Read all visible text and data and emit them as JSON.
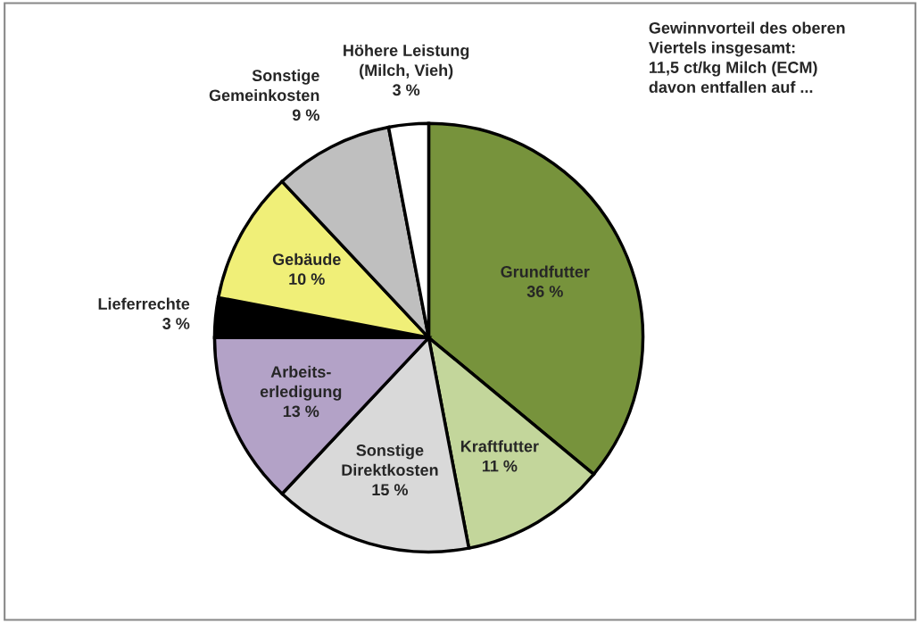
{
  "chart_data": {
    "type": "pie",
    "categories": [
      "Grundfutter",
      "Kraftfutter",
      "Sonstige\nDirektkosten",
      "Arbeits-\nerledigung",
      "Lieferrechte",
      "Gebäude",
      "Sonstige\nGemeinkosten",
      "Höhere Leistung\n(Milch, Vieh)"
    ],
    "values": [
      36,
      11,
      15,
      13,
      3,
      10,
      9,
      3
    ],
    "value_labels": [
      "36 %",
      "11 %",
      "15 %",
      "13 %",
      "3 %",
      "10 %",
      "9 %",
      "3 %"
    ],
    "colors": [
      "#77933c",
      "#c3d69b",
      "#d9d9d9",
      "#b3a2c7",
      "#000000",
      "#f0ef78",
      "#bfbfbf",
      "#ffffff"
    ],
    "annotations": [
      "Gewinnvorteil des oberen\nViertels insgesamt:\n11,5 ct/kg Milch (ECM)\ndavon entfallen auf ..."
    ]
  }
}
